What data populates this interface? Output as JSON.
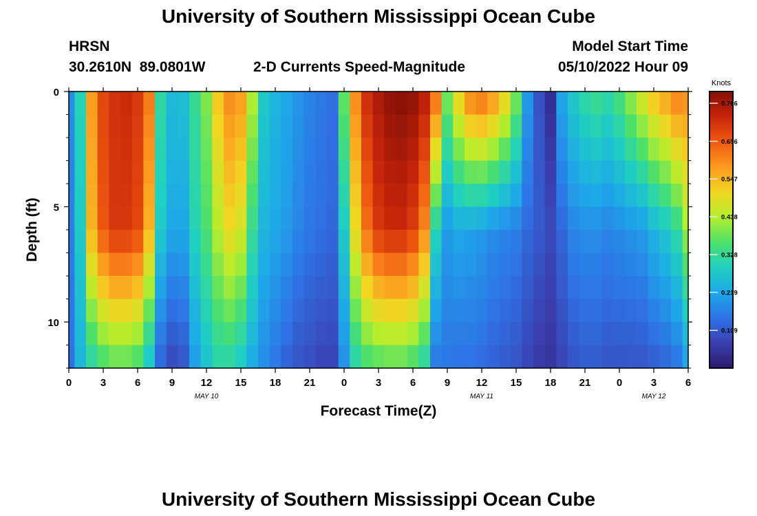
{
  "header": {
    "title": "University of Southern Mississippi Ocean Cube",
    "station": "HRSN",
    "coords": "30.2610N  89.0801W",
    "plot_title": "2-D Currents Speed-Magnitude",
    "model_start_label": "Model Start Time",
    "model_start_value": "05/10/2022 Hour 09"
  },
  "footer": {
    "title": "University of Southern Mississippi Ocean Cube"
  },
  "chart_data": {
    "type": "heatmap",
    "title": "2-D Currents Speed-Magnitude",
    "xlabel": "Forecast Time(Z)",
    "ylabel": "Depth (ft)",
    "x_range_hours": [
      0,
      54
    ],
    "y_range_ft": [
      0,
      12
    ],
    "y_inverted": true,
    "x_ticks": [
      "0",
      "3",
      "6",
      "9",
      "12",
      "15",
      "18",
      "21",
      "0",
      "3",
      "6",
      "9",
      "12",
      "15",
      "18",
      "21",
      "0",
      "3",
      "6"
    ],
    "y_ticks": [
      "0",
      "5",
      "10"
    ],
    "date_labels": [
      {
        "label": "MAY 10",
        "hour": 12
      },
      {
        "label": "MAY 11",
        "hour": 36
      },
      {
        "label": "MAY 12",
        "hour": 51
      }
    ],
    "colorbar": {
      "title": "Knots",
      "min": 0,
      "max": 0.8,
      "ticks": [
        "0.766",
        "0.656",
        "0.547",
        "0.438",
        "0.328",
        "0.219",
        "0.109"
      ],
      "colors": [
        "#2b1a6b",
        "#3b3fb0",
        "#2e74e6",
        "#1ea8e8",
        "#20d0c0",
        "#4ee06a",
        "#b5ee2e",
        "#f2d622",
        "#fb9a1f",
        "#ef5a11",
        "#c8250a",
        "#861006"
      ]
    },
    "speed_profiles_knots": {
      "hours": [
        0,
        1,
        2,
        3,
        4,
        5,
        6,
        7,
        8,
        9,
        10,
        11,
        12,
        13,
        14,
        15,
        16,
        17,
        18,
        19,
        20,
        21,
        22,
        23,
        24,
        25,
        26,
        27,
        28,
        29,
        30,
        31,
        32,
        33,
        34,
        35,
        36,
        37,
        38,
        39,
        40,
        41,
        42,
        43,
        44,
        45,
        46,
        47,
        48,
        49,
        50,
        51,
        52,
        53,
        54
      ],
      "depth_0ft": [
        0.18,
        0.3,
        0.58,
        0.68,
        0.71,
        0.72,
        0.7,
        0.62,
        0.32,
        0.25,
        0.26,
        0.33,
        0.4,
        0.53,
        0.6,
        0.58,
        0.44,
        0.28,
        0.24,
        0.22,
        0.19,
        0.17,
        0.15,
        0.14,
        0.38,
        0.6,
        0.72,
        0.76,
        0.79,
        0.8,
        0.79,
        0.75,
        0.64,
        0.4,
        0.52,
        0.62,
        0.64,
        0.6,
        0.52,
        0.4,
        0.2,
        0.1,
        0.04,
        0.22,
        0.28,
        0.32,
        0.34,
        0.32,
        0.36,
        0.42,
        0.48,
        0.54,
        0.58,
        0.62,
        0.6
      ],
      "depth_6ft": [
        0.16,
        0.28,
        0.55,
        0.66,
        0.7,
        0.7,
        0.68,
        0.55,
        0.28,
        0.22,
        0.22,
        0.3,
        0.36,
        0.44,
        0.5,
        0.47,
        0.33,
        0.24,
        0.22,
        0.2,
        0.17,
        0.15,
        0.14,
        0.13,
        0.28,
        0.5,
        0.63,
        0.7,
        0.72,
        0.72,
        0.69,
        0.6,
        0.3,
        0.2,
        0.22,
        0.21,
        0.2,
        0.18,
        0.17,
        0.16,
        0.13,
        0.11,
        0.09,
        0.13,
        0.17,
        0.18,
        0.18,
        0.17,
        0.18,
        0.19,
        0.2,
        0.24,
        0.27,
        0.32,
        0.42
      ],
      "depth_12ft": [
        0.14,
        0.24,
        0.3,
        0.34,
        0.36,
        0.36,
        0.34,
        0.26,
        0.12,
        0.08,
        0.1,
        0.2,
        0.26,
        0.3,
        0.3,
        0.27,
        0.22,
        0.18,
        0.15,
        0.12,
        0.1,
        0.09,
        0.08,
        0.08,
        0.18,
        0.3,
        0.34,
        0.35,
        0.36,
        0.36,
        0.34,
        0.3,
        0.15,
        0.15,
        0.14,
        0.14,
        0.13,
        0.12,
        0.11,
        0.1,
        0.08,
        0.06,
        0.05,
        0.08,
        0.1,
        0.11,
        0.11,
        0.1,
        0.1,
        0.1,
        0.1,
        0.11,
        0.12,
        0.14,
        0.2
      ]
    }
  }
}
